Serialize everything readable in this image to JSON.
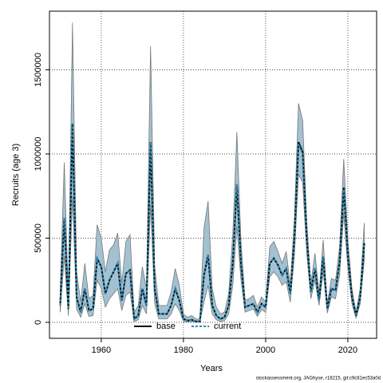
{
  "chart_data": {
    "type": "line",
    "xlabel": "Years",
    "ylabel": "Recruits (age 3)",
    "footnote": "stockassessment.org, JAGhyse, r18215, git:c9c81ec53a0d",
    "x": [
      1950,
      1951,
      1952,
      1953,
      1954,
      1955,
      1956,
      1957,
      1958,
      1959,
      1960,
      1961,
      1962,
      1963,
      1964,
      1965,
      1966,
      1967,
      1968,
      1969,
      1970,
      1971,
      1972,
      1973,
      1974,
      1975,
      1976,
      1977,
      1978,
      1979,
      1980,
      1981,
      1982,
      1983,
      1984,
      1985,
      1986,
      1987,
      1988,
      1989,
      1990,
      1991,
      1992,
      1993,
      1994,
      1995,
      1996,
      1997,
      1998,
      1999,
      2000,
      2001,
      2002,
      2003,
      2004,
      2005,
      2006,
      2007,
      2008,
      2009,
      2010,
      2011,
      2012,
      2013,
      2014,
      2015,
      2016,
      2017,
      2018,
      2019,
      2020,
      2021,
      2022,
      2023,
      2024
    ],
    "series": [
      {
        "name": "base",
        "color": "#000000",
        "values": [
          100000,
          620000,
          80000,
          1180000,
          150000,
          60000,
          200000,
          70000,
          80000,
          380000,
          330000,
          170000,
          250000,
          300000,
          350000,
          130000,
          290000,
          310000,
          20000,
          40000,
          200000,
          100000,
          1070000,
          200000,
          50000,
          50000,
          50000,
          100000,
          200000,
          130000,
          20000,
          10000,
          15000,
          5000,
          5000,
          280000,
          400000,
          100000,
          40000,
          20000,
          30000,
          100000,
          350000,
          820000,
          350000,
          90000,
          100000,
          110000,
          60000,
          110000,
          90000,
          350000,
          380000,
          340000,
          280000,
          320000,
          170000,
          500000,
          1070000,
          1010000,
          500000,
          180000,
          320000,
          130000,
          390000,
          80000,
          200000,
          190000,
          360000,
          800000,
          400000,
          150000,
          40000,
          150000,
          470000
        ]
      },
      {
        "name": "current",
        "color": "#2a8ab4",
        "values": [
          100000,
          620000,
          80000,
          1180000,
          150000,
          60000,
          200000,
          70000,
          80000,
          380000,
          330000,
          170000,
          250000,
          300000,
          350000,
          130000,
          290000,
          310000,
          20000,
          40000,
          200000,
          100000,
          1070000,
          200000,
          50000,
          50000,
          50000,
          100000,
          200000,
          130000,
          20000,
          10000,
          15000,
          5000,
          5000,
          280000,
          400000,
          100000,
          40000,
          20000,
          30000,
          100000,
          350000,
          820000,
          350000,
          90000,
          100000,
          110000,
          60000,
          110000,
          90000,
          350000,
          380000,
          340000,
          280000,
          320000,
          170000,
          500000,
          1060000,
          1000000,
          500000,
          180000,
          320000,
          130000,
          390000,
          80000,
          200000,
          190000,
          360000,
          790000,
          400000,
          150000,
          40000,
          150000,
          470000
        ]
      }
    ],
    "interval": {
      "color": "#a3c1d1",
      "upper": [
        180000,
        950000,
        150000,
        1780000,
        300000,
        120000,
        350000,
        140000,
        160000,
        580000,
        500000,
        300000,
        430000,
        460000,
        530000,
        230000,
        480000,
        520000,
        60000,
        100000,
        330000,
        200000,
        1640000,
        330000,
        100000,
        100000,
        100000,
        180000,
        320000,
        220000,
        50000,
        30000,
        40000,
        20000,
        20000,
        560000,
        720000,
        200000,
        90000,
        50000,
        60000,
        170000,
        520000,
        1130000,
        480000,
        130000,
        140000,
        160000,
        90000,
        150000,
        120000,
        450000,
        480000,
        420000,
        350000,
        420000,
        220000,
        620000,
        1300000,
        1200000,
        600000,
        230000,
        410000,
        170000,
        490000,
        110000,
        260000,
        250000,
        450000,
        970000,
        490000,
        200000,
        60000,
        200000,
        590000
      ],
      "lower": [
        60000,
        390000,
        40000,
        750000,
        80000,
        30000,
        110000,
        35000,
        40000,
        250000,
        200000,
        90000,
        140000,
        170000,
        200000,
        70000,
        160000,
        180000,
        5000,
        15000,
        100000,
        50000,
        700000,
        110000,
        20000,
        20000,
        20000,
        50000,
        110000,
        70000,
        5000,
        2000,
        4000,
        1000,
        1000,
        120000,
        220000,
        50000,
        15000,
        5000,
        10000,
        50000,
        220000,
        570000,
        250000,
        60000,
        70000,
        80000,
        35000,
        75000,
        60000,
        270000,
        300000,
        270000,
        220000,
        240000,
        120000,
        400000,
        880000,
        830000,
        410000,
        140000,
        250000,
        100000,
        300000,
        55000,
        150000,
        140000,
        280000,
        650000,
        320000,
        110000,
        25000,
        110000,
        370000
      ]
    },
    "xlim": [
      1947.4,
      2027
    ],
    "ylim": [
      -95000,
      1848000
    ],
    "xticks": [
      1960,
      1980,
      2000,
      2020
    ],
    "yticks": [
      0,
      500000,
      1000000,
      1500000
    ],
    "grid": true,
    "legend": "bottom"
  }
}
